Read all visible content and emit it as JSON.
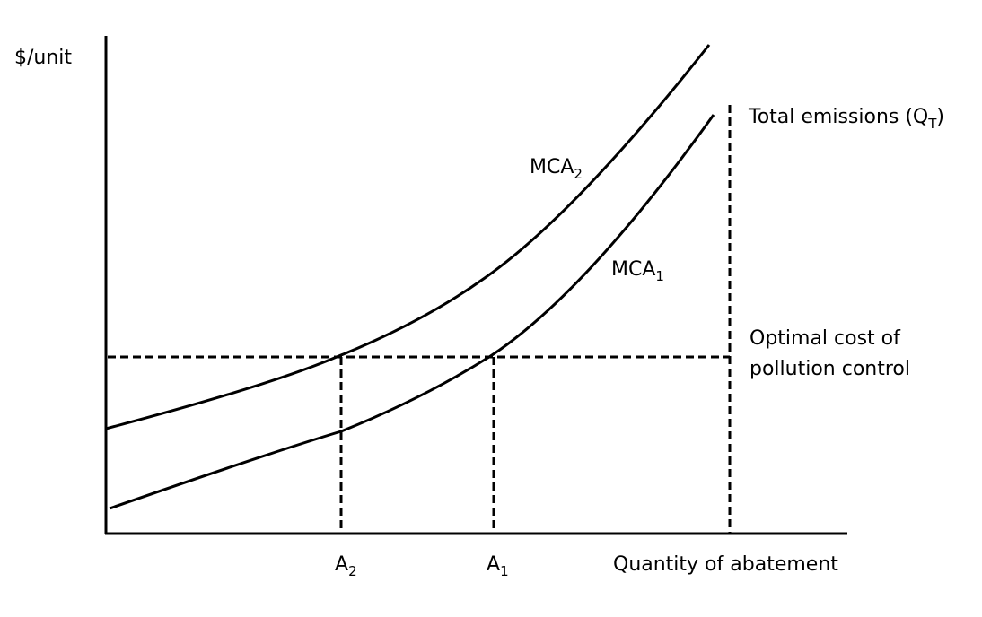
{
  "diagram": {
    "y_axis_label": "$/unit",
    "x_axis_label": "Quantity of abatement",
    "curves": [
      {
        "base": "MCA",
        "sub": "2"
      },
      {
        "base": "MCA",
        "sub": "1"
      }
    ],
    "ticks": [
      {
        "base": "A",
        "sub": "2"
      },
      {
        "base": "A",
        "sub": "1"
      }
    ],
    "total_emissions": {
      "text": "Total emissions (Q",
      "sub": "T",
      "close": ")"
    },
    "optimal_cost": {
      "line1": "Optimal cost of",
      "line2": "pollution control"
    }
  }
}
